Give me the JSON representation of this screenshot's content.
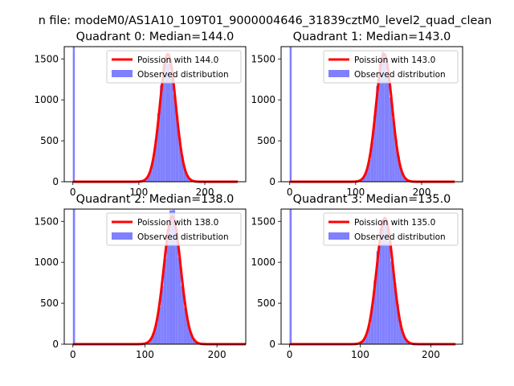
{
  "suptitle": "n file: modeM0/AS1A10_109T01_9000004646_31839cztM0_level2_quad_clean",
  "colors": {
    "poisson": "#ff0000",
    "observed": "#8080ff",
    "spike": "#8080ff"
  },
  "chart_data": [
    {
      "type": "bar",
      "title": "Quadrant 0: Median=144.0",
      "median": 144.0,
      "sigma": 12,
      "spike": {
        "x": 0,
        "value": 1650
      },
      "xlim": [
        -13,
        262
      ],
      "ylim": [
        0,
        1650
      ],
      "xticks": [
        0,
        100,
        200
      ],
      "yticks": [
        0,
        500,
        1000,
        1500
      ],
      "curve_x_range": [
        0,
        250
      ],
      "curve_peak": 1560,
      "legend": [
        "Poission with 144.0",
        "Observed distribution"
      ],
      "legend_position": "top-right"
    },
    {
      "type": "bar",
      "title": "Quadrant 1: Median=143.0",
      "median": 143.0,
      "sigma": 12,
      "spike": {
        "x": 0,
        "value": 1650
      },
      "xlim": [
        -13,
        262
      ],
      "ylim": [
        0,
        1650
      ],
      "xticks": [
        0,
        100,
        200
      ],
      "yticks": [
        0,
        500,
        1000,
        1500
      ],
      "curve_x_range": [
        0,
        250
      ],
      "curve_peak": 1560,
      "legend": [
        "Poission with 143.0",
        "Observed distribution"
      ],
      "legend_position": "top-right"
    },
    {
      "type": "bar",
      "title": "Quadrant 2: Median=138.0",
      "median": 138.0,
      "sigma": 11.7,
      "spike": {
        "x": 0,
        "value": 1650
      },
      "xlim": [
        -12,
        240
      ],
      "ylim": [
        0,
        1650
      ],
      "xticks": [
        0,
        100,
        200
      ],
      "yticks": [
        0,
        500,
        1000,
        1500
      ],
      "curve_x_range": [
        0,
        240
      ],
      "curve_peak": 1560,
      "legend": [
        "Poission with 138.0",
        "Observed distribution"
      ],
      "legend_position": "top-right"
    },
    {
      "type": "bar",
      "title": "Quadrant 3: Median=135.0",
      "median": 135.0,
      "sigma": 11.6,
      "spike": {
        "x": 0,
        "value": 1650
      },
      "xlim": [
        -12,
        245
      ],
      "ylim": [
        0,
        1650
      ],
      "xticks": [
        0,
        100,
        200
      ],
      "yticks": [
        0,
        500,
        1000,
        1500
      ],
      "curve_x_range": [
        0,
        235
      ],
      "curve_peak": 1540,
      "legend": [
        "Poission with 135.0",
        "Observed distribution"
      ],
      "legend_position": "top-right"
    }
  ]
}
